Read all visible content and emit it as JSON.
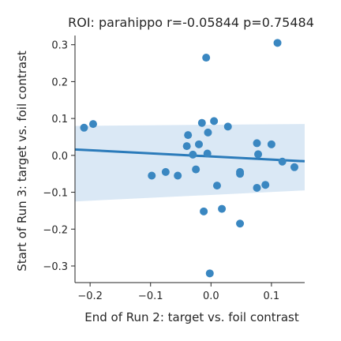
{
  "chart_data": {
    "type": "scatter",
    "title": "ROI: parahippo  r=-0.05844  p=0.75484",
    "xlabel": "End of Run 2: target vs. foil contrast",
    "ylabel": "Start of Run 3: target vs. foil contrast",
    "xlim": [
      -0.225,
      0.155
    ],
    "ylim": [
      -0.345,
      0.325
    ],
    "x_ticks": [
      -0.2,
      -0.1,
      0.0,
      0.1
    ],
    "x_tick_labels": [
      "−0.2",
      "−0.1",
      "0.0",
      "0.1"
    ],
    "y_ticks": [
      -0.3,
      -0.2,
      -0.1,
      0.0,
      0.1,
      0.2,
      0.3
    ],
    "y_tick_labels": [
      "−0.3",
      "−0.2",
      "−0.1",
      "0.0",
      "0.1",
      "0.2",
      "0.3"
    ],
    "grid": false,
    "point_color": "#3a87c1",
    "line_color": "#2b7bba",
    "band_color": "#dae8f5",
    "regression": {
      "x": [
        -0.225,
        0.155
      ],
      "y": [
        0.016,
        -0.016
      ],
      "ci_lower": [
        -0.125,
        -0.095
      ],
      "ci_upper": [
        0.08,
        0.085
      ]
    },
    "points": [
      {
        "x": -0.21,
        "y": 0.075
      },
      {
        "x": -0.195,
        "y": 0.085
      },
      {
        "x": -0.098,
        "y": -0.055
      },
      {
        "x": -0.075,
        "y": -0.045
      },
      {
        "x": -0.055,
        "y": -0.055
      },
      {
        "x": -0.038,
        "y": 0.055
      },
      {
        "x": -0.04,
        "y": 0.025
      },
      {
        "x": -0.03,
        "y": 0.002
      },
      {
        "x": -0.025,
        "y": -0.038
      },
      {
        "x": -0.02,
        "y": 0.03
      },
      {
        "x": -0.015,
        "y": 0.088
      },
      {
        "x": -0.012,
        "y": -0.152
      },
      {
        "x": -0.008,
        "y": 0.265
      },
      {
        "x": -0.006,
        "y": 0.005
      },
      {
        "x": -0.005,
        "y": 0.062
      },
      {
        "x": -0.002,
        "y": -0.32
      },
      {
        "x": 0.005,
        "y": 0.093
      },
      {
        "x": 0.01,
        "y": -0.082
      },
      {
        "x": 0.018,
        "y": -0.145
      },
      {
        "x": 0.028,
        "y": 0.078
      },
      {
        "x": 0.048,
        "y": -0.045
      },
      {
        "x": 0.048,
        "y": -0.05
      },
      {
        "x": 0.048,
        "y": -0.185
      },
      {
        "x": 0.076,
        "y": 0.033
      },
      {
        "x": 0.076,
        "y": -0.088
      },
      {
        "x": 0.078,
        "y": 0.003
      },
      {
        "x": 0.09,
        "y": -0.08
      },
      {
        "x": 0.1,
        "y": 0.03
      },
      {
        "x": 0.11,
        "y": 0.305
      },
      {
        "x": 0.118,
        "y": -0.017
      },
      {
        "x": 0.138,
        "y": -0.032
      }
    ]
  }
}
